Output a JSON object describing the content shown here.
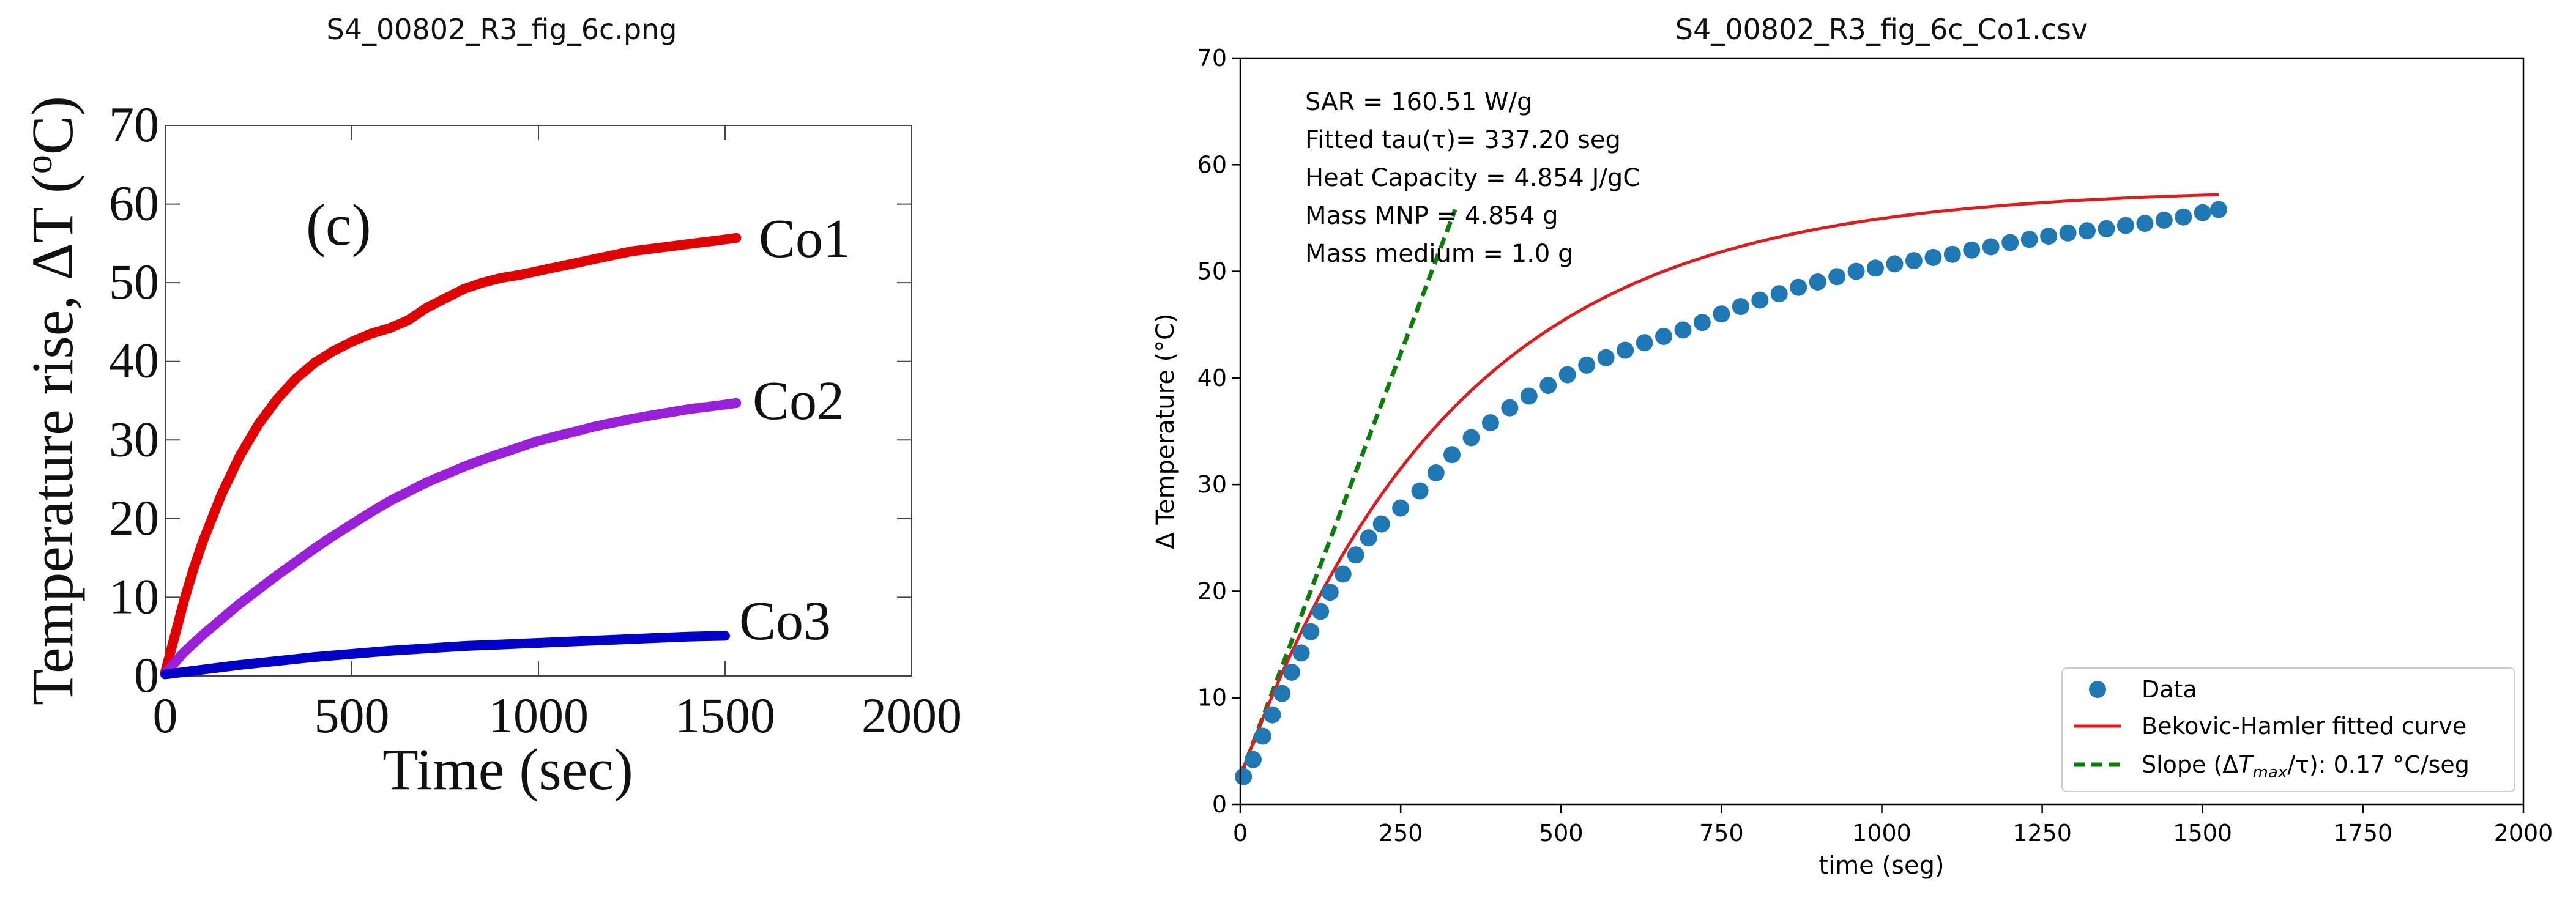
{
  "chart_data": [
    {
      "type": "line",
      "title": "S4_00802_R3_fig_6c.png",
      "panel_label": "(c)",
      "xlabel": "Time (sec)",
      "ylabel": "Temperature rise, ΔT (",
      "ylabel_sup": "o",
      "ylabel_end": "C)",
      "xlim": [
        0,
        2000
      ],
      "ylim": [
        0,
        70
      ],
      "xticks": [
        0,
        500,
        1000,
        1500,
        2000
      ],
      "yticks": [
        0,
        10,
        20,
        30,
        40,
        50,
        60,
        70
      ],
      "grid": false,
      "colors": {
        "Co1": "#e00000",
        "Co2": "#9a1fd8",
        "Co3": "#0000c8"
      },
      "series": [
        {
          "name": "Co1",
          "x": [
            0,
            25,
            50,
            75,
            100,
            150,
            200,
            250,
            300,
            350,
            400,
            450,
            500,
            550,
            600,
            650,
            700,
            750,
            800,
            850,
            900,
            950,
            1000,
            1050,
            1100,
            1150,
            1200,
            1250,
            1300,
            1350,
            1400,
            1450,
            1500,
            1530
          ],
          "y": [
            0.5,
            5,
            9.5,
            13.5,
            17,
            23,
            28,
            32,
            35.2,
            37.8,
            39.8,
            41.3,
            42.5,
            43.5,
            44.2,
            45.2,
            46.8,
            48,
            49.2,
            50,
            50.6,
            51,
            51.5,
            52,
            52.5,
            53,
            53.5,
            54,
            54.3,
            54.6,
            54.9,
            55.2,
            55.5,
            55.7
          ]
        },
        {
          "name": "Co2",
          "x": [
            0,
            50,
            100,
            150,
            200,
            250,
            300,
            350,
            400,
            450,
            500,
            550,
            600,
            650,
            700,
            750,
            800,
            850,
            900,
            950,
            1000,
            1050,
            1100,
            1150,
            1200,
            1250,
            1300,
            1350,
            1400,
            1450,
            1500,
            1530
          ],
          "y": [
            0.3,
            3,
            5.2,
            7.2,
            9.2,
            11,
            12.8,
            14.5,
            16.2,
            17.8,
            19.3,
            20.8,
            22.2,
            23.4,
            24.6,
            25.6,
            26.6,
            27.5,
            28.3,
            29.1,
            29.9,
            30.5,
            31.1,
            31.7,
            32.2,
            32.7,
            33.1,
            33.5,
            33.9,
            34.2,
            34.5,
            34.7
          ]
        },
        {
          "name": "Co3",
          "x": [
            0,
            100,
            200,
            300,
            400,
            500,
            600,
            700,
            800,
            900,
            1000,
            1100,
            1200,
            1300,
            1400,
            1500
          ],
          "y": [
            0.2,
            0.8,
            1.4,
            1.9,
            2.4,
            2.8,
            3.2,
            3.5,
            3.8,
            4.0,
            4.2,
            4.4,
            4.6,
            4.8,
            5.0,
            5.1
          ]
        }
      ]
    },
    {
      "type": "scatter",
      "title": "S4_00802_R3_fig_6c_Co1.csv",
      "xlabel": "time (seg)",
      "ylabel": "Δ Temperature (°C)",
      "xlim": [
        0,
        2000
      ],
      "ylim": [
        0,
        70
      ],
      "xticks": [
        0,
        250,
        500,
        750,
        1000,
        1250,
        1500,
        1750,
        2000
      ],
      "yticks": [
        0,
        10,
        20,
        30,
        40,
        50,
        60,
        70
      ],
      "grid": false,
      "legend_position": "bottom-right",
      "annotations": [
        "SAR = 160.51 W/g",
        "Fitted tau(τ)= 337.20 seg",
        "Heat Capacity = 4.854 J/gC",
        "Mass MNP = 4.854 g",
        "Mass medium = 1.0 g"
      ],
      "legend": {
        "data": "Data",
        "fit": "Bekovic-Hamler fitted curve",
        "slope_prefix": "Slope (Δ",
        "slope_italic": "T",
        "slope_sub": "max",
        "slope_suffix": "/τ): 0.17 °C/seg"
      },
      "colors": {
        "data": "#1f77b4",
        "fit": "#e31a1c",
        "slope": "#0a7d0a"
      },
      "data_points": {
        "x": [
          5,
          20,
          35,
          50,
          65,
          80,
          95,
          110,
          125,
          140,
          160,
          180,
          200,
          220,
          250,
          280,
          305,
          330,
          360,
          390,
          420,
          450,
          480,
          510,
          540,
          570,
          600,
          630,
          660,
          690,
          720,
          750,
          780,
          810,
          840,
          870,
          900,
          930,
          960,
          990,
          1020,
          1050,
          1080,
          1110,
          1140,
          1170,
          1200,
          1230,
          1260,
          1290,
          1320,
          1350,
          1380,
          1410,
          1440,
          1470,
          1500,
          1525
        ],
        "y": [
          2.6,
          4.2,
          6.4,
          8.4,
          10.4,
          12.4,
          14.2,
          16.2,
          18.1,
          19.9,
          21.6,
          23.4,
          25.0,
          26.3,
          27.8,
          29.4,
          31.1,
          32.8,
          34.4,
          35.8,
          37.2,
          38.3,
          39.3,
          40.3,
          41.2,
          41.9,
          42.6,
          43.3,
          43.9,
          44.5,
          45.2,
          46.0,
          46.7,
          47.3,
          47.9,
          48.5,
          49.0,
          49.5,
          50.0,
          50.3,
          50.7,
          51.0,
          51.3,
          51.6,
          52.0,
          52.3,
          52.7,
          53.0,
          53.3,
          53.6,
          53.8,
          54.0,
          54.3,
          54.5,
          54.8,
          55.1,
          55.5,
          55.8
        ]
      },
      "fit": {
        "y_start": 2.6,
        "y_max": 57.8,
        "tau": 337.2,
        "x_end": 1525
      },
      "slope_line": {
        "x": [
          0,
          335
        ],
        "y": [
          2.6,
          55.8
        ]
      }
    }
  ]
}
